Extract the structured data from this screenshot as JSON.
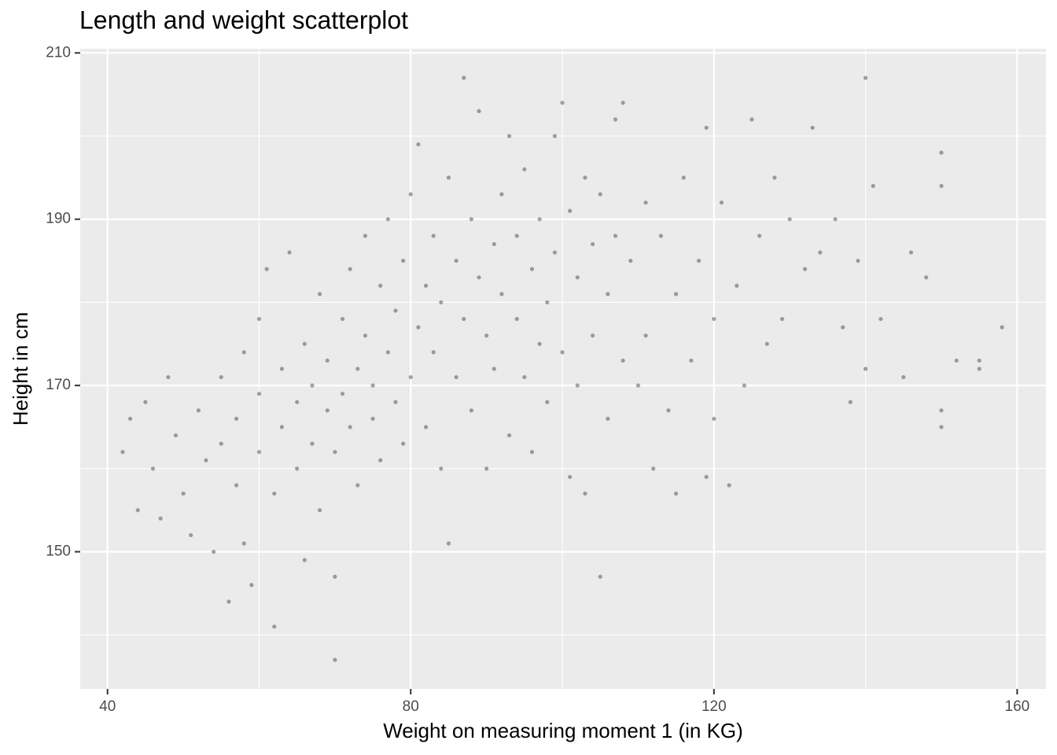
{
  "chart_data": {
    "type": "scatter",
    "title": "Length and weight scatterplot",
    "x_label": "Weight on measuring moment 1 (in KG)",
    "y_label": "Height in cm",
    "xlim": [
      36.4,
      163.8
    ],
    "ylim": [
      133.5,
      210.5
    ],
    "xticks": [
      40,
      80,
      120,
      160
    ],
    "yticks": [
      150,
      170,
      190,
      210
    ],
    "x_minor_grid": [
      60,
      100,
      140
    ],
    "y_minor_grid": [
      140,
      160,
      180,
      200
    ],
    "grid": true,
    "color": "#000000",
    "point_alpha": 0.35,
    "x": [
      42,
      43,
      44,
      45,
      46,
      47,
      48,
      49,
      50,
      51,
      52,
      53,
      54,
      55,
      55,
      56,
      57,
      57,
      58,
      58,
      59,
      60,
      60,
      60,
      61,
      62,
      62,
      63,
      63,
      64,
      65,
      65,
      66,
      66,
      67,
      67,
      68,
      68,
      69,
      69,
      70,
      70,
      70,
      71,
      71,
      72,
      72,
      73,
      73,
      74,
      74,
      75,
      75,
      76,
      76,
      77,
      77,
      78,
      78,
      79,
      79,
      80,
      80,
      81,
      81,
      82,
      82,
      83,
      83,
      84,
      84,
      85,
      85,
      86,
      86,
      87,
      87,
      88,
      88,
      89,
      89,
      90,
      90,
      91,
      91,
      92,
      92,
      93,
      93,
      94,
      94,
      95,
      95,
      96,
      96,
      97,
      97,
      98,
      98,
      99,
      99,
      100,
      100,
      101,
      101,
      102,
      102,
      103,
      103,
      104,
      104,
      105,
      105,
      106,
      106,
      107,
      107,
      108,
      108,
      109,
      110,
      111,
      111,
      112,
      113,
      114,
      115,
      115,
      116,
      117,
      118,
      119,
      119,
      120,
      120,
      121,
      122,
      123,
      124,
      125,
      126,
      127,
      128,
      129,
      130,
      132,
      133,
      134,
      136,
      137,
      138,
      139,
      140,
      140,
      141,
      142,
      145,
      146,
      148,
      150,
      150,
      150,
      150,
      152,
      155,
      155,
      158
    ],
    "values": [
      162,
      166,
      155,
      168,
      160,
      154,
      171,
      164,
      157,
      152,
      167,
      161,
      150,
      163,
      171,
      144,
      158,
      166,
      151,
      174,
      146,
      162,
      169,
      178,
      184,
      141,
      157,
      165,
      172,
      186,
      160,
      168,
      149,
      175,
      163,
      170,
      181,
      155,
      167,
      173,
      137,
      147,
      162,
      178,
      169,
      184,
      165,
      158,
      172,
      188,
      176,
      166,
      170,
      182,
      161,
      174,
      190,
      168,
      179,
      185,
      163,
      171,
      193,
      177,
      199,
      182,
      165,
      188,
      174,
      160,
      180,
      151,
      195,
      185,
      171,
      178,
      207,
      190,
      167,
      183,
      203,
      176,
      160,
      187,
      172,
      193,
      181,
      164,
      200,
      178,
      188,
      171,
      196,
      184,
      162,
      190,
      175,
      180,
      168,
      200,
      186,
      204,
      174,
      191,
      159,
      183,
      170,
      157,
      195,
      187,
      176,
      147,
      193,
      181,
      166,
      202,
      188,
      173,
      204,
      185,
      170,
      192,
      176,
      160,
      188,
      167,
      157,
      181,
      195,
      173,
      185,
      201,
      159,
      178,
      166,
      192,
      158,
      182,
      170,
      202,
      188,
      175,
      195,
      178,
      190,
      184,
      201,
      186,
      190,
      177,
      168,
      185,
      207,
      172,
      194,
      178,
      171,
      186,
      183,
      198,
      194,
      165,
      167,
      173,
      173,
      172,
      177
    ]
  }
}
